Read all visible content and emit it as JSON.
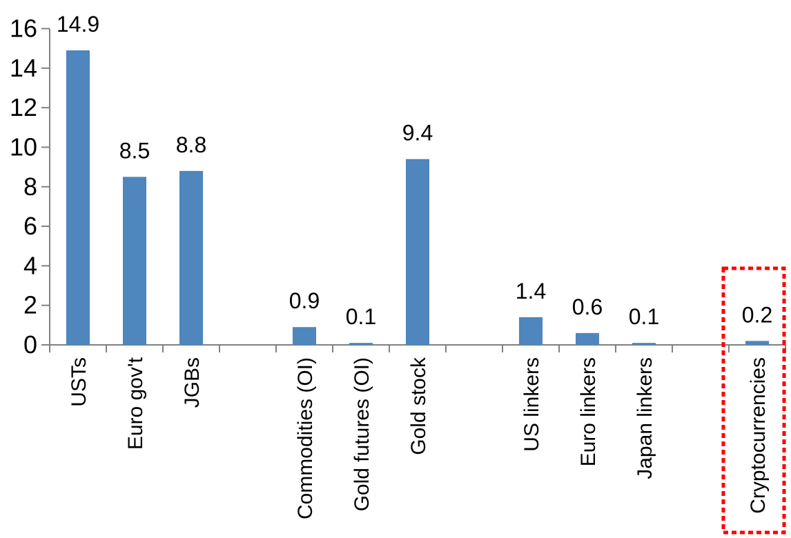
{
  "chart_data": {
    "type": "bar",
    "title": "",
    "xlabel": "",
    "ylabel": "",
    "ylim": [
      0,
      16
    ],
    "y_ticks": [
      0,
      2,
      4,
      6,
      8,
      10,
      12,
      14,
      16
    ],
    "grid": false,
    "legend": null,
    "bar_color": "#4e86bd",
    "axis_color": "#808080",
    "text_color": "#000000",
    "total_slots": 13,
    "bars": [
      {
        "label": "USTs",
        "value": 14.9,
        "value_label": "14.9",
        "slot": 0
      },
      {
        "label": "Euro gov't",
        "value": 8.5,
        "value_label": "8.5",
        "slot": 1
      },
      {
        "label": "JGBs",
        "value": 8.8,
        "value_label": "8.8",
        "slot": 2
      },
      {
        "label": "Commodities (OI)",
        "value": 0.9,
        "value_label": "0.9",
        "slot": 4
      },
      {
        "label": "Gold futures (OI)",
        "value": 0.1,
        "value_label": "0.1",
        "slot": 5
      },
      {
        "label": "Gold stock",
        "value": 9.4,
        "value_label": "9.4",
        "slot": 6
      },
      {
        "label": "US linkers",
        "value": 1.4,
        "value_label": "1.4",
        "slot": 8
      },
      {
        "label": "Euro linkers",
        "value": 0.6,
        "value_label": "0.6",
        "slot": 9
      },
      {
        "label": "Japan linkers",
        "value": 0.1,
        "value_label": "0.1",
        "slot": 10
      },
      {
        "label": "Cryptocurrencies",
        "value": 0.2,
        "value_label": "0.2",
        "slot": 12
      }
    ],
    "highlight": {
      "category": "Cryptocurrencies",
      "color": "#ff0000",
      "style": "dotted-box"
    }
  }
}
